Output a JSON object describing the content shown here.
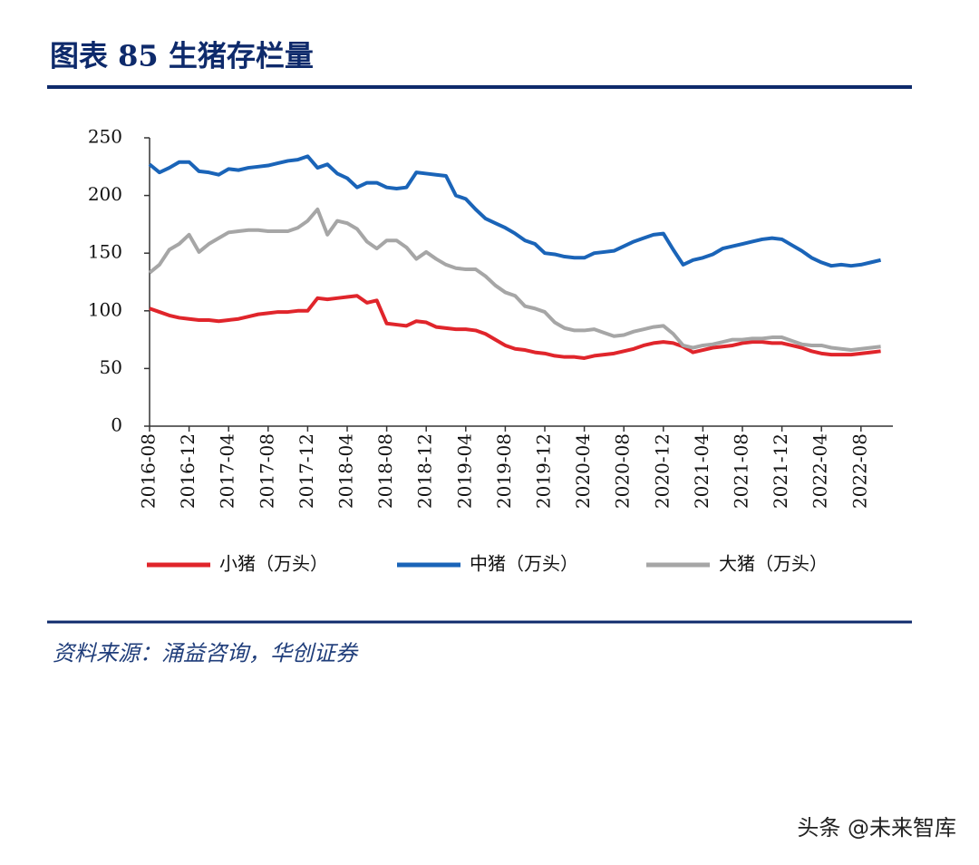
{
  "chart_data": {
    "type": "line",
    "title": "图表 85  生猪存栏量",
    "source": "资料来源：涌益咨询，华创证券",
    "watermark": "头条 @未来智库",
    "categories": [
      "2016-08",
      null,
      null,
      null,
      "2016-12",
      null,
      null,
      null,
      "2017-04",
      null,
      null,
      null,
      "2017-08",
      null,
      null,
      null,
      "2017-12",
      null,
      null,
      null,
      "2018-04",
      null,
      null,
      null,
      "2018-08",
      null,
      null,
      null,
      "2018-12",
      null,
      null,
      null,
      "2019-04",
      null,
      null,
      null,
      "2019-08",
      null,
      null,
      null,
      "2019-12",
      null,
      null,
      null,
      "2020-04",
      null,
      null,
      null,
      "2020-08",
      null,
      null,
      null,
      "2020-12",
      null,
      null,
      null,
      "2021-04",
      null,
      null,
      null,
      "2021-08",
      null,
      null,
      null,
      "2021-12",
      null,
      null,
      null,
      "2022-04",
      null,
      null,
      null,
      "2022-08",
      null,
      null
    ],
    "series": [
      {
        "name": "小猪（万头）",
        "color": "#e0252b",
        "values": [
          102,
          99,
          96,
          94,
          93,
          92,
          92,
          91,
          92,
          93,
          95,
          97,
          98,
          99,
          99,
          100,
          100,
          111,
          110,
          111,
          112,
          113,
          107,
          109,
          89,
          88,
          87,
          91,
          90,
          86,
          85,
          84,
          84,
          83,
          80,
          75,
          70,
          67,
          66,
          64,
          63,
          61,
          60,
          60,
          59,
          61,
          62,
          63,
          65,
          67,
          70,
          72,
          73,
          72,
          69,
          64,
          66,
          68,
          69,
          70,
          72,
          73,
          73,
          72,
          72,
          70,
          68,
          65,
          63,
          62,
          62,
          62,
          63,
          64,
          65
        ]
      },
      {
        "name": "中猪（万头）",
        "color": "#1a64b8",
        "values": [
          227,
          220,
          224,
          229,
          229,
          221,
          220,
          218,
          223,
          222,
          224,
          225,
          226,
          228,
          230,
          231,
          234,
          224,
          227,
          219,
          215,
          207,
          211,
          211,
          207,
          206,
          207,
          220,
          219,
          218,
          217,
          200,
          197,
          188,
          180,
          176,
          172,
          167,
          161,
          158,
          150,
          149,
          147,
          146,
          146,
          150,
          151,
          152,
          156,
          160,
          163,
          166,
          167,
          153,
          140,
          144,
          146,
          149,
          154,
          156,
          158,
          160,
          162,
          163,
          162,
          157,
          152,
          146,
          142,
          139,
          140,
          139,
          140,
          142,
          144
        ]
      },
      {
        "name": "大猪（万头）",
        "color": "#a6a6a6",
        "values": [
          133,
          140,
          153,
          158,
          166,
          151,
          158,
          163,
          168,
          169,
          170,
          170,
          169,
          169,
          169,
          172,
          178,
          188,
          166,
          178,
          176,
          171,
          160,
          154,
          161,
          161,
          155,
          145,
          151,
          145,
          140,
          137,
          136,
          136,
          130,
          122,
          116,
          113,
          104,
          102,
          99,
          90,
          85,
          83,
          83,
          84,
          81,
          78,
          79,
          82,
          84,
          86,
          87,
          80,
          70,
          68,
          70,
          71,
          73,
          75,
          75,
          76,
          76,
          77,
          77,
          74,
          71,
          70,
          70,
          68,
          67,
          66,
          67,
          68,
          69
        ]
      }
    ],
    "ylim": [
      0,
      250
    ],
    "yticks": [
      0,
      50,
      100,
      150,
      200,
      250
    ]
  }
}
